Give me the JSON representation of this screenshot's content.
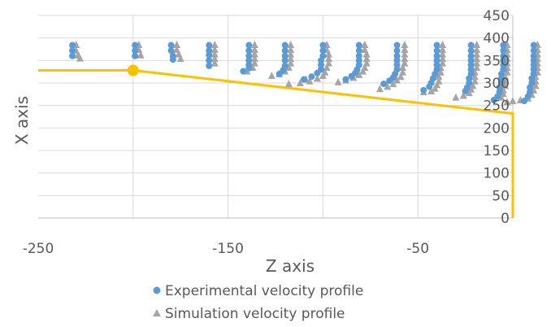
{
  "chart_data": {
    "type": "scatter",
    "xlabel": "Z axis",
    "ylabel": "X axis",
    "xlim": [
      -250,
      0
    ],
    "ylim": [
      0,
      450
    ],
    "x_ticks": [
      -250,
      -150,
      -50
    ],
    "y_ticks": [
      0,
      50,
      100,
      150,
      200,
      250,
      300,
      350,
      400,
      450
    ],
    "grid": true,
    "legend_position": "bottom",
    "series": [
      {
        "name": "Experimental velocity profile",
        "marker": "circle",
        "color": "#5b9bd5",
        "points": [
          [
            -232,
            384
          ],
          [
            -232,
            372
          ],
          [
            -232,
            360
          ],
          [
            -199,
            384
          ],
          [
            -199,
            372
          ],
          [
            -199,
            360
          ],
          [
            -180,
            384
          ],
          [
            -180,
            372
          ],
          [
            -179,
            360
          ],
          [
            -179,
            352
          ],
          [
            -160,
            384
          ],
          [
            -160,
            372
          ],
          [
            -160,
            362
          ],
          [
            -160,
            350
          ],
          [
            -160,
            338
          ],
          [
            -139,
            384
          ],
          [
            -139,
            372
          ],
          [
            -139,
            360
          ],
          [
            -139,
            350
          ],
          [
            -139,
            340
          ],
          [
            -139,
            333
          ],
          [
            -142,
            326
          ],
          [
            -120,
            384
          ],
          [
            -120,
            372
          ],
          [
            -120,
            360
          ],
          [
            -120,
            350
          ],
          [
            -120,
            338
          ],
          [
            -121,
            328
          ],
          [
            -123,
            320
          ],
          [
            -100,
            384
          ],
          [
            -100,
            372
          ],
          [
            -100,
            360
          ],
          [
            -101,
            350
          ],
          [
            -101,
            340
          ],
          [
            -101,
            330
          ],
          [
            -103,
            322
          ],
          [
            -106,
            314
          ],
          [
            -110,
            308
          ],
          [
            -81,
            384
          ],
          [
            -81,
            372
          ],
          [
            -81,
            360
          ],
          [
            -81,
            350
          ],
          [
            -81,
            340
          ],
          [
            -82,
            330
          ],
          [
            -83,
            322
          ],
          [
            -85,
            315
          ],
          [
            -88,
            308
          ],
          [
            -61,
            384
          ],
          [
            -61,
            372
          ],
          [
            -61,
            360
          ],
          [
            -61,
            350
          ],
          [
            -61,
            340
          ],
          [
            -61,
            330
          ],
          [
            -62,
            320
          ],
          [
            -63,
            312
          ],
          [
            -65,
            305
          ],
          [
            -68,
            298
          ],
          [
            -40,
            384
          ],
          [
            -40,
            372
          ],
          [
            -40,
            360
          ],
          [
            -40,
            350
          ],
          [
            -40,
            340
          ],
          [
            -40,
            330
          ],
          [
            -41,
            320
          ],
          [
            -42,
            310
          ],
          [
            -43,
            300
          ],
          [
            -44,
            292
          ],
          [
            -47,
            284
          ],
          [
            -22,
            384
          ],
          [
            -22,
            372
          ],
          [
            -22,
            360
          ],
          [
            -22,
            350
          ],
          [
            -22,
            340
          ],
          [
            -22,
            330
          ],
          [
            -22,
            320
          ],
          [
            -23,
            310
          ],
          [
            -23,
            300
          ],
          [
            -24,
            290
          ],
          [
            -25,
            282
          ],
          [
            -5,
            384
          ],
          [
            -5,
            372
          ],
          [
            -5,
            360
          ],
          [
            -5,
            350
          ],
          [
            -5,
            340
          ],
          [
            -5,
            330
          ],
          [
            -6,
            320
          ],
          [
            -6,
            310
          ],
          [
            -6,
            300
          ],
          [
            -7,
            290
          ],
          [
            -7,
            280
          ],
          [
            -8,
            270
          ],
          [
            -10,
            262
          ],
          [
            11,
            384
          ],
          [
            11,
            372
          ],
          [
            11,
            360
          ],
          [
            11,
            350
          ],
          [
            11,
            340
          ],
          [
            11,
            330
          ],
          [
            11,
            320
          ],
          [
            10,
            310
          ],
          [
            10,
            300
          ],
          [
            9,
            290
          ],
          [
            9,
            280
          ],
          [
            8,
            270
          ],
          [
            6,
            260
          ]
        ]
      },
      {
        "name": "Simulation velocity profile",
        "marker": "triangle",
        "color": "#a5a5a5",
        "points": [
          [
            -230,
            385
          ],
          [
            -230,
            372
          ],
          [
            -229,
            362
          ],
          [
            -228,
            355
          ],
          [
            -197,
            385
          ],
          [
            -197,
            374
          ],
          [
            -196,
            362
          ],
          [
            -177,
            385
          ],
          [
            -177,
            374
          ],
          [
            -176,
            364
          ],
          [
            -175,
            354
          ],
          [
            -157,
            385
          ],
          [
            -157,
            374
          ],
          [
            -157,
            364
          ],
          [
            -157,
            354
          ],
          [
            -157,
            344
          ],
          [
            -136,
            385
          ],
          [
            -136,
            374
          ],
          [
            -136,
            364
          ],
          [
            -136,
            354
          ],
          [
            -136,
            344
          ],
          [
            -137,
            334
          ],
          [
            -140,
            326
          ],
          [
            -117,
            385
          ],
          [
            -117,
            374
          ],
          [
            -117,
            364
          ],
          [
            -117,
            354
          ],
          [
            -117,
            344
          ],
          [
            -118,
            334
          ],
          [
            -120,
            326
          ],
          [
            -123,
            320
          ],
          [
            -127,
            316
          ],
          [
            -109,
            308
          ],
          [
            -98,
            385
          ],
          [
            -98,
            374
          ],
          [
            -97,
            364
          ],
          [
            -97,
            354
          ],
          [
            -97,
            344
          ],
          [
            -98,
            334
          ],
          [
            -99,
            324
          ],
          [
            -100,
            316
          ],
          [
            -103,
            310
          ],
          [
            -107,
            304
          ],
          [
            -112,
            300
          ],
          [
            -118,
            298
          ],
          [
            -78,
            385
          ],
          [
            -78,
            374
          ],
          [
            -77,
            364
          ],
          [
            -77,
            354
          ],
          [
            -77,
            344
          ],
          [
            -78,
            334
          ],
          [
            -79,
            326
          ],
          [
            -81,
            318
          ],
          [
            -84,
            312
          ],
          [
            -88,
            306
          ],
          [
            -92,
            302
          ],
          [
            -57,
            385
          ],
          [
            -57,
            374
          ],
          [
            -57,
            364
          ],
          [
            -57,
            354
          ],
          [
            -57,
            344
          ],
          [
            -58,
            334
          ],
          [
            -58,
            324
          ],
          [
            -59,
            314
          ],
          [
            -61,
            306
          ],
          [
            -63,
            298
          ],
          [
            -66,
            292
          ],
          [
            -70,
            287
          ],
          [
            -37,
            385
          ],
          [
            -37,
            374
          ],
          [
            -37,
            364
          ],
          [
            -37,
            354
          ],
          [
            -37,
            344
          ],
          [
            -38,
            334
          ],
          [
            -38,
            324
          ],
          [
            -39,
            314
          ],
          [
            -39,
            304
          ],
          [
            -40,
            296
          ],
          [
            -41,
            288
          ],
          [
            -43,
            282
          ],
          [
            -47,
            280
          ],
          [
            -19,
            385
          ],
          [
            -19,
            374
          ],
          [
            -19,
            364
          ],
          [
            -19,
            354
          ],
          [
            -19,
            344
          ],
          [
            -19,
            334
          ],
          [
            -20,
            324
          ],
          [
            -20,
            314
          ],
          [
            -20,
            304
          ],
          [
            -21,
            294
          ],
          [
            -22,
            286
          ],
          [
            -23,
            278
          ],
          [
            -26,
            272
          ],
          [
            -30,
            268
          ],
          [
            -3,
            385
          ],
          [
            -3,
            374
          ],
          [
            -3,
            364
          ],
          [
            -3,
            354
          ],
          [
            -3,
            344
          ],
          [
            -3,
            334
          ],
          [
            -3,
            324
          ],
          [
            -4,
            314
          ],
          [
            -4,
            304
          ],
          [
            -4,
            294
          ],
          [
            -5,
            284
          ],
          [
            -5,
            276
          ],
          [
            -6,
            268
          ],
          [
            13,
            385
          ],
          [
            13,
            374
          ],
          [
            13,
            364
          ],
          [
            13,
            354
          ],
          [
            13,
            344
          ],
          [
            13,
            334
          ],
          [
            13,
            324
          ],
          [
            12,
            314
          ],
          [
            12,
            304
          ],
          [
            12,
            294
          ],
          [
            11,
            284
          ],
          [
            10,
            274
          ],
          [
            8,
            266
          ],
          [
            4,
            262
          ],
          [
            0,
            260
          ],
          [
            -3,
            258
          ]
        ]
      }
    ],
    "annotations": [
      {
        "kind": "line",
        "color": "#ffc000",
        "path": [
          [
            -250,
            328
          ],
          [
            -200,
            328
          ],
          [
            0,
            232
          ],
          [
            0,
            0
          ]
        ]
      },
      {
        "kind": "marker",
        "color": "#ffc000",
        "point": [
          -200,
          328
        ]
      }
    ]
  }
}
